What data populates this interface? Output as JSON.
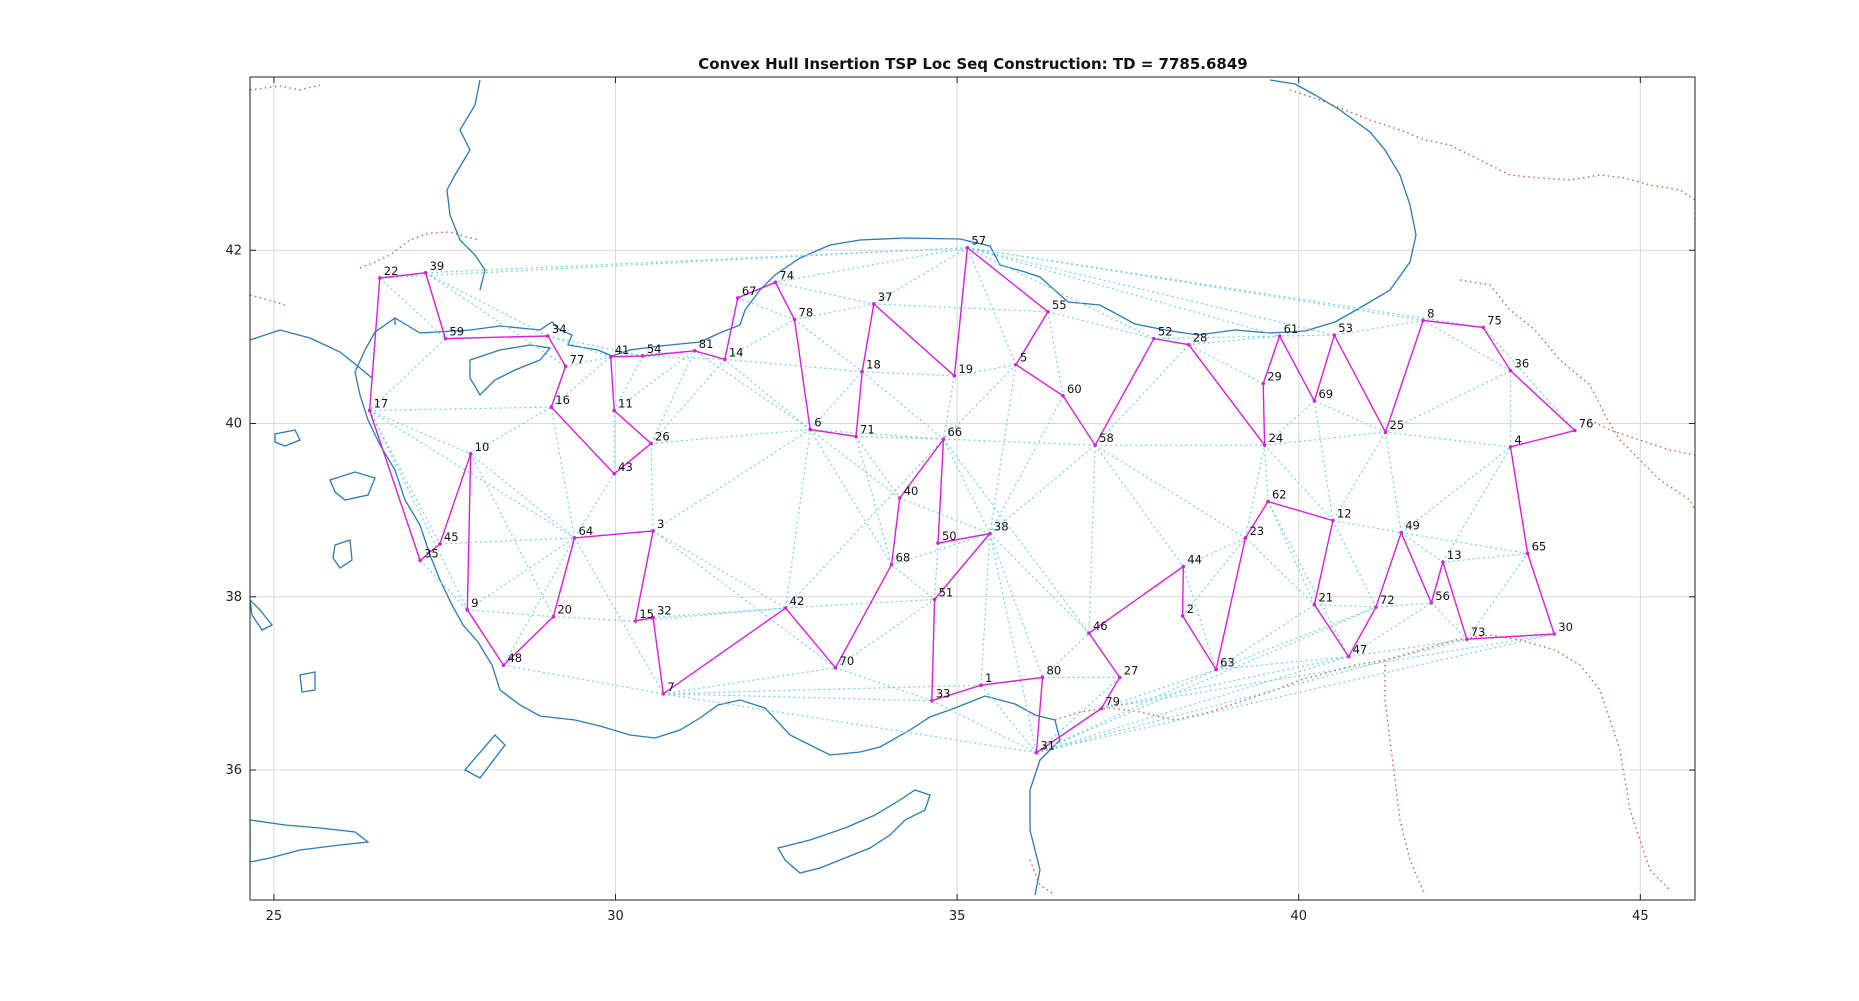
{
  "chart_data": {
    "type": "scatter",
    "title": "Convex Hull Insertion TSP Loc Seq Construction: TD = 7785.6849",
    "xlabel": "",
    "ylabel": "",
    "xlim": [
      24.65,
      45.8
    ],
    "ylim": [
      34.5,
      44.0
    ],
    "xticks": [
      25,
      30,
      35,
      40,
      45
    ],
    "yticks": [
      36,
      38,
      40,
      42
    ],
    "grid": true,
    "colors": {
      "route": "#d920d9",
      "candidate_edges": "#74d3e0",
      "coastline": "#2a7ab8",
      "borders": "#c8643c"
    },
    "nodes": [
      {
        "id": "1",
        "x": 35.35,
        "y": 36.98
      },
      {
        "id": "2",
        "x": 38.3,
        "y": 37.78
      },
      {
        "id": "3",
        "x": 30.55,
        "y": 38.76
      },
      {
        "id": "4",
        "x": 43.1,
        "y": 39.73
      },
      {
        "id": "5",
        "x": 35.86,
        "y": 40.68
      },
      {
        "id": "6",
        "x": 32.85,
        "y": 39.93
      },
      {
        "id": "7",
        "x": 30.7,
        "y": 36.88
      },
      {
        "id": "8",
        "x": 41.82,
        "y": 41.19
      },
      {
        "id": "9",
        "x": 27.83,
        "y": 37.85
      },
      {
        "id": "10",
        "x": 27.88,
        "y": 39.65
      },
      {
        "id": "11",
        "x": 29.98,
        "y": 40.15
      },
      {
        "id": "12",
        "x": 40.5,
        "y": 38.88
      },
      {
        "id": "13",
        "x": 42.11,
        "y": 38.4
      },
      {
        "id": "14",
        "x": 31.6,
        "y": 40.74
      },
      {
        "id": "15",
        "x": 30.29,
        "y": 37.72
      },
      {
        "id": "16",
        "x": 29.06,
        "y": 40.19
      },
      {
        "id": "17",
        "x": 26.4,
        "y": 40.15
      },
      {
        "id": "18",
        "x": 33.61,
        "y": 40.6
      },
      {
        "id": "19",
        "x": 34.96,
        "y": 40.55
      },
      {
        "id": "20",
        "x": 29.09,
        "y": 37.77
      },
      {
        "id": "21",
        "x": 40.23,
        "y": 37.91
      },
      {
        "id": "22",
        "x": 26.55,
        "y": 41.68
      },
      {
        "id": "23",
        "x": 39.22,
        "y": 38.68
      },
      {
        "id": "24",
        "x": 39.5,
        "y": 39.75
      },
      {
        "id": "25",
        "x": 41.27,
        "y": 39.9
      },
      {
        "id": "26",
        "x": 30.52,
        "y": 39.77
      },
      {
        "id": "27",
        "x": 37.38,
        "y": 37.07
      },
      {
        "id": "28",
        "x": 38.39,
        "y": 40.91
      },
      {
        "id": "29",
        "x": 39.48,
        "y": 40.46
      },
      {
        "id": "30",
        "x": 43.74,
        "y": 37.57
      },
      {
        "id": "31",
        "x": 36.16,
        "y": 36.2
      },
      {
        "id": "32",
        "x": 30.55,
        "y": 37.76
      },
      {
        "id": "33",
        "x": 34.63,
        "y": 36.8
      },
      {
        "id": "34",
        "x": 29.01,
        "y": 41.01
      },
      {
        "id": "35",
        "x": 27.14,
        "y": 38.42
      },
      {
        "id": "36",
        "x": 43.1,
        "y": 40.61
      },
      {
        "id": "37",
        "x": 33.78,
        "y": 41.38
      },
      {
        "id": "38",
        "x": 35.48,
        "y": 38.73
      },
      {
        "id": "39",
        "x": 27.22,
        "y": 41.74
      },
      {
        "id": "40",
        "x": 34.16,
        "y": 39.14
      },
      {
        "id": "41",
        "x": 29.93,
        "y": 40.77
      },
      {
        "id": "42",
        "x": 32.49,
        "y": 37.87
      },
      {
        "id": "43",
        "x": 29.98,
        "y": 39.42
      },
      {
        "id": "44",
        "x": 38.31,
        "y": 38.35
      },
      {
        "id": "45",
        "x": 27.43,
        "y": 38.61
      },
      {
        "id": "46",
        "x": 36.93,
        "y": 37.58
      },
      {
        "id": "47",
        "x": 40.73,
        "y": 37.31
      },
      {
        "id": "48",
        "x": 28.36,
        "y": 37.21
      },
      {
        "id": "49",
        "x": 41.5,
        "y": 38.74
      },
      {
        "id": "50",
        "x": 34.72,
        "y": 38.62
      },
      {
        "id": "51",
        "x": 34.67,
        "y": 37.97
      },
      {
        "id": "52",
        "x": 37.88,
        "y": 40.98
      },
      {
        "id": "53",
        "x": 40.52,
        "y": 41.02
      },
      {
        "id": "54",
        "x": 30.4,
        "y": 40.78
      },
      {
        "id": "55",
        "x": 36.33,
        "y": 41.29
      },
      {
        "id": "56",
        "x": 41.94,
        "y": 37.93
      },
      {
        "id": "57",
        "x": 35.15,
        "y": 42.03
      },
      {
        "id": "58",
        "x": 37.02,
        "y": 39.75
      },
      {
        "id": "59",
        "x": 27.51,
        "y": 40.98
      },
      {
        "id": "60",
        "x": 36.55,
        "y": 40.32
      },
      {
        "id": "61",
        "x": 39.72,
        "y": 41.01
      },
      {
        "id": "62",
        "x": 39.55,
        "y": 39.1
      },
      {
        "id": "63",
        "x": 38.79,
        "y": 37.16
      },
      {
        "id": "64",
        "x": 29.4,
        "y": 38.68
      },
      {
        "id": "65",
        "x": 43.35,
        "y": 38.5
      },
      {
        "id": "66",
        "x": 34.8,
        "y": 39.82
      },
      {
        "id": "67",
        "x": 31.79,
        "y": 41.45
      },
      {
        "id": "68",
        "x": 34.04,
        "y": 38.37
      },
      {
        "id": "69",
        "x": 40.23,
        "y": 40.26
      },
      {
        "id": "70",
        "x": 33.22,
        "y": 37.18
      },
      {
        "id": "71",
        "x": 33.52,
        "y": 39.85
      },
      {
        "id": "72",
        "x": 41.13,
        "y": 37.88
      },
      {
        "id": "73",
        "x": 42.46,
        "y": 37.51
      },
      {
        "id": "74",
        "x": 32.34,
        "y": 41.63
      },
      {
        "id": "75",
        "x": 42.7,
        "y": 41.11
      },
      {
        "id": "76",
        "x": 44.04,
        "y": 39.92
      },
      {
        "id": "77",
        "x": 29.27,
        "y": 40.66
      },
      {
        "id": "78",
        "x": 32.62,
        "y": 41.2
      },
      {
        "id": "79",
        "x": 37.11,
        "y": 36.71
      },
      {
        "id": "80",
        "x": 36.25,
        "y": 37.07
      },
      {
        "id": "81",
        "x": 31.16,
        "y": 40.84
      }
    ],
    "route": [
      "57",
      "19",
      "37",
      "18",
      "71",
      "6",
      "78",
      "74",
      "67",
      "14",
      "81",
      "54",
      "41",
      "11",
      "26",
      "43",
      "16",
      "77",
      "34",
      "59",
      "39",
      "22",
      "17",
      "35",
      "45",
      "10",
      "9",
      "48",
      "20",
      "64",
      "3",
      "15",
      "32",
      "7",
      "42",
      "70",
      "68",
      "40",
      "66",
      "50",
      "38",
      "51",
      "33",
      "1",
      "80",
      "31",
      "79",
      "27",
      "46",
      "44",
      "2",
      "63",
      "23",
      "62",
      "12",
      "21",
      "47",
      "72",
      "49",
      "56",
      "13",
      "73",
      "30",
      "65",
      "4",
      "76",
      "36",
      "75",
      "8",
      "25",
      "53",
      "69",
      "61",
      "29",
      "24",
      "28",
      "52",
      "58",
      "60",
      "5",
      "55",
      "57"
    ],
    "candidate_edges": [
      [
        "57",
        "39"
      ],
      [
        "57",
        "22"
      ],
      [
        "57",
        "74"
      ],
      [
        "57",
        "37"
      ],
      [
        "57",
        "5"
      ],
      [
        "57",
        "8"
      ],
      [
        "57",
        "75"
      ],
      [
        "57",
        "61"
      ],
      [
        "57",
        "53"
      ],
      [
        "57",
        "52"
      ],
      [
        "39",
        "34"
      ],
      [
        "39",
        "77"
      ],
      [
        "39",
        "59"
      ],
      [
        "22",
        "59"
      ],
      [
        "59",
        "17"
      ],
      [
        "17",
        "16"
      ],
      [
        "17",
        "10"
      ],
      [
        "17",
        "64"
      ],
      [
        "17",
        "9"
      ],
      [
        "17",
        "45"
      ],
      [
        "35",
        "9"
      ],
      [
        "10",
        "20"
      ],
      [
        "10",
        "64"
      ],
      [
        "10",
        "16"
      ],
      [
        "45",
        "64"
      ],
      [
        "9",
        "20"
      ],
      [
        "9",
        "64"
      ],
      [
        "48",
        "7"
      ],
      [
        "48",
        "64"
      ],
      [
        "20",
        "15"
      ],
      [
        "20",
        "64"
      ],
      [
        "64",
        "16"
      ],
      [
        "64",
        "43"
      ],
      [
        "64",
        "7"
      ],
      [
        "16",
        "43"
      ],
      [
        "16",
        "41"
      ],
      [
        "34",
        "41"
      ],
      [
        "34",
        "54"
      ],
      [
        "77",
        "41"
      ],
      [
        "41",
        "81"
      ],
      [
        "54",
        "11"
      ],
      [
        "54",
        "14"
      ],
      [
        "11",
        "43"
      ],
      [
        "11",
        "81"
      ],
      [
        "43",
        "26"
      ],
      [
        "26",
        "6"
      ],
      [
        "26",
        "14"
      ],
      [
        "26",
        "81"
      ],
      [
        "26",
        "3"
      ],
      [
        "3",
        "42"
      ],
      [
        "3",
        "6"
      ],
      [
        "3",
        "70"
      ],
      [
        "15",
        "42"
      ],
      [
        "32",
        "42"
      ],
      [
        "7",
        "33"
      ],
      [
        "7",
        "70"
      ],
      [
        "7",
        "1"
      ],
      [
        "7",
        "31"
      ],
      [
        "42",
        "6"
      ],
      [
        "42",
        "51"
      ],
      [
        "42",
        "66"
      ],
      [
        "70",
        "33"
      ],
      [
        "70",
        "51"
      ],
      [
        "6",
        "14"
      ],
      [
        "6",
        "81"
      ],
      [
        "6",
        "18"
      ],
      [
        "6",
        "66"
      ],
      [
        "6",
        "68"
      ],
      [
        "6",
        "40"
      ],
      [
        "71",
        "66"
      ],
      [
        "71",
        "68"
      ],
      [
        "71",
        "40"
      ],
      [
        "14",
        "78"
      ],
      [
        "14",
        "18"
      ],
      [
        "78",
        "37"
      ],
      [
        "78",
        "18"
      ],
      [
        "74",
        "37"
      ],
      [
        "37",
        "55"
      ],
      [
        "18",
        "19"
      ],
      [
        "18",
        "66"
      ],
      [
        "19",
        "5"
      ],
      [
        "19",
        "66"
      ],
      [
        "5",
        "60"
      ],
      [
        "5",
        "66"
      ],
      [
        "5",
        "38"
      ],
      [
        "55",
        "60"
      ],
      [
        "55",
        "52"
      ],
      [
        "60",
        "58"
      ],
      [
        "60",
        "38"
      ],
      [
        "66",
        "38"
      ],
      [
        "66",
        "58"
      ],
      [
        "66",
        "46"
      ],
      [
        "40",
        "68"
      ],
      [
        "40",
        "38"
      ],
      [
        "68",
        "51"
      ],
      [
        "68",
        "38"
      ],
      [
        "50",
        "51"
      ],
      [
        "38",
        "46"
      ],
      [
        "38",
        "58"
      ],
      [
        "38",
        "31"
      ],
      [
        "38",
        "1"
      ],
      [
        "38",
        "80"
      ],
      [
        "51",
        "33"
      ],
      [
        "33",
        "31"
      ],
      [
        "1",
        "31"
      ],
      [
        "80",
        "46"
      ],
      [
        "80",
        "27"
      ],
      [
        "31",
        "27"
      ],
      [
        "31",
        "63"
      ],
      [
        "31",
        "47"
      ],
      [
        "31",
        "73"
      ],
      [
        "31",
        "30"
      ],
      [
        "31",
        "72"
      ],
      [
        "79",
        "63"
      ],
      [
        "79",
        "47"
      ],
      [
        "79",
        "30"
      ],
      [
        "46",
        "58"
      ],
      [
        "46",
        "27"
      ],
      [
        "58",
        "44"
      ],
      [
        "58",
        "24"
      ],
      [
        "58",
        "28"
      ],
      [
        "58",
        "23"
      ],
      [
        "44",
        "63"
      ],
      [
        "44",
        "23"
      ],
      [
        "2",
        "23"
      ],
      [
        "63",
        "21"
      ],
      [
        "63",
        "47"
      ],
      [
        "63",
        "72"
      ],
      [
        "23",
        "24"
      ],
      [
        "23",
        "21"
      ],
      [
        "62",
        "24"
      ],
      [
        "62",
        "21"
      ],
      [
        "62",
        "47"
      ],
      [
        "12",
        "24"
      ],
      [
        "12",
        "49"
      ],
      [
        "12",
        "72"
      ],
      [
        "21",
        "72"
      ],
      [
        "47",
        "56"
      ],
      [
        "47",
        "73"
      ],
      [
        "72",
        "56"
      ],
      [
        "49",
        "25"
      ],
      [
        "49",
        "13"
      ],
      [
        "49",
        "4"
      ],
      [
        "49",
        "65"
      ],
      [
        "56",
        "73"
      ],
      [
        "13",
        "65"
      ],
      [
        "13",
        "4"
      ],
      [
        "73",
        "65"
      ],
      [
        "65",
        "4"
      ],
      [
        "4",
        "36"
      ],
      [
        "4",
        "25"
      ],
      [
        "36",
        "25"
      ],
      [
        "36",
        "8"
      ],
      [
        "36",
        "76"
      ],
      [
        "75",
        "76"
      ],
      [
        "8",
        "53"
      ],
      [
        "25",
        "69"
      ],
      [
        "25",
        "12"
      ],
      [
        "25",
        "24"
      ],
      [
        "53",
        "61"
      ],
      [
        "69",
        "24"
      ],
      [
        "69",
        "12"
      ],
      [
        "61",
        "28"
      ],
      [
        "61",
        "52"
      ],
      [
        "29",
        "28"
      ],
      [
        "24",
        "28"
      ],
      [
        "52",
        "28"
      ],
      [
        "37",
        "19"
      ],
      [
        "74",
        "78"
      ],
      [
        "67",
        "78"
      ]
    ]
  }
}
